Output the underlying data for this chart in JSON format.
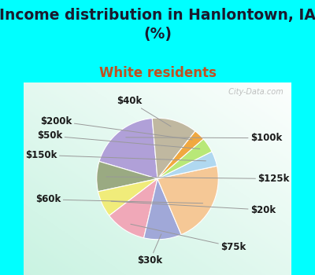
{
  "title": "Income distribution in Hanlontown, IA\n(%)",
  "subtitle": "White residents",
  "title_color": "#1a1a2e",
  "subtitle_color": "#c05020",
  "bg_cyan": "#00ffff",
  "watermark": " City-Data.com",
  "slices": [
    {
      "label": "$100k",
      "value": 19,
      "color": "#b0a0d8"
    },
    {
      "label": "$125k",
      "value": 8,
      "color": "#9aaa82"
    },
    {
      "label": "$20k",
      "value": 7,
      "color": "#f0ec7a"
    },
    {
      "label": "$75k",
      "value": 11,
      "color": "#f0a8b8"
    },
    {
      "label": "$30k",
      "value": 10,
      "color": "#a0a8d8"
    },
    {
      "label": "$60k",
      "value": 22,
      "color": "#f5c896"
    },
    {
      "label": "$150k",
      "value": 4,
      "color": "#b0d8f0"
    },
    {
      "label": "$50k",
      "value": 4,
      "color": "#b8e878"
    },
    {
      "label": "$200k",
      "value": 3,
      "color": "#f0a840"
    },
    {
      "label": "$40k",
      "value": 12,
      "color": "#c0b8a0"
    }
  ],
  "label_fontsize": 8.5,
  "title_fontsize": 13.5,
  "subtitle_fontsize": 12,
  "startangle": 95
}
